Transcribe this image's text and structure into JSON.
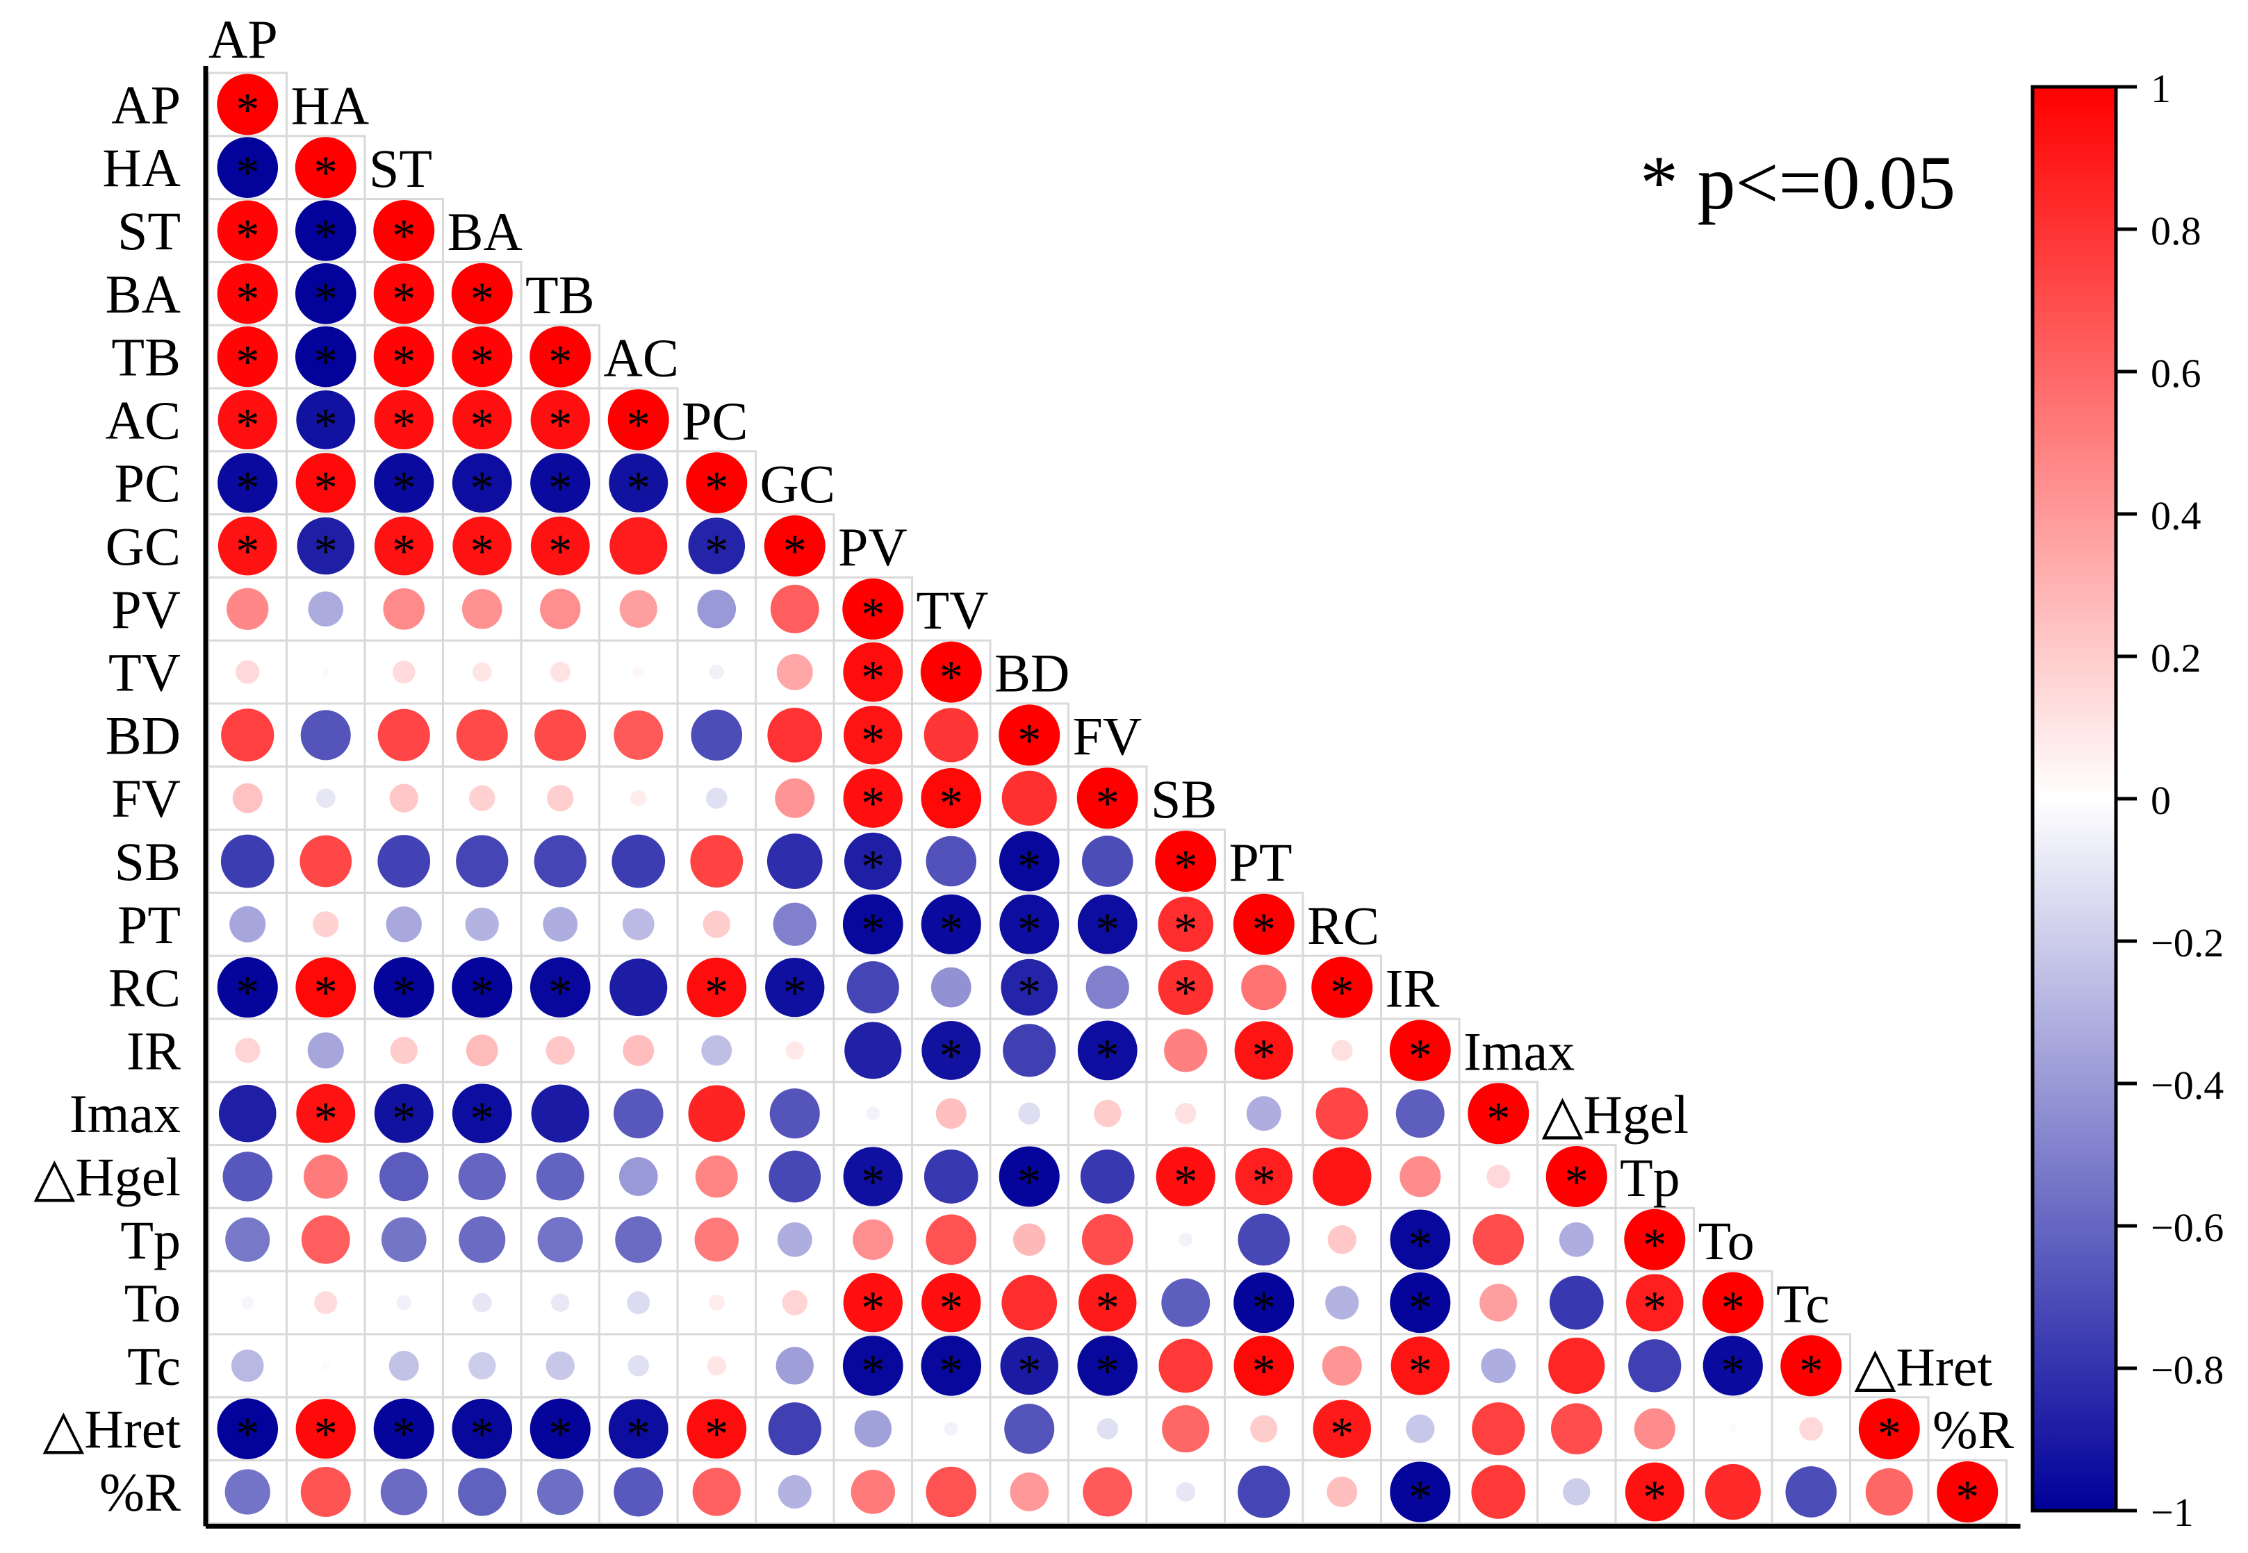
{
  "chart_data": {
    "type": "heatmap",
    "subtype": "lower-triangle correlation matrix, circles sized and coloured by r",
    "variables": [
      "AP",
      "HA",
      "ST",
      "BA",
      "TB",
      "AC",
      "PC",
      "GC",
      "PV",
      "TV",
      "BD",
      "FV",
      "SB",
      "PT",
      "RC",
      "IR",
      "Imax",
      "△Hgel",
      "Tp",
      "To",
      "Tc",
      "△Hret",
      "%R"
    ],
    "rows": [
      {
        "var": "AP",
        "r": [
          1
        ],
        "sig": [
          1
        ]
      },
      {
        "var": "HA",
        "r": [
          -0.99,
          1
        ],
        "sig": [
          1,
          1
        ]
      },
      {
        "var": "ST",
        "r": [
          0.98,
          -0.99,
          1
        ],
        "sig": [
          1,
          1,
          1
        ]
      },
      {
        "var": "BA",
        "r": [
          0.98,
          -0.99,
          0.98,
          1
        ],
        "sig": [
          1,
          1,
          1,
          1
        ]
      },
      {
        "var": "TB",
        "r": [
          0.98,
          -0.99,
          0.98,
          0.98,
          1
        ],
        "sig": [
          1,
          1,
          1,
          1,
          1
        ]
      },
      {
        "var": "AC",
        "r": [
          0.94,
          -0.93,
          0.94,
          0.94,
          0.94,
          1
        ],
        "sig": [
          1,
          1,
          1,
          1,
          1,
          1
        ]
      },
      {
        "var": "PC",
        "r": [
          -0.96,
          0.96,
          -0.96,
          -0.95,
          -0.96,
          -0.93,
          1
        ],
        "sig": [
          1,
          1,
          1,
          1,
          1,
          1,
          1
        ]
      },
      {
        "var": "GC",
        "r": [
          0.93,
          -0.88,
          0.93,
          0.93,
          0.93,
          0.89,
          -0.86,
          1
        ],
        "sig": [
          1,
          1,
          1,
          1,
          1,
          0,
          1,
          1
        ]
      },
      {
        "var": "PV",
        "r": [
          0.47,
          -0.33,
          0.46,
          0.43,
          0.44,
          0.38,
          -0.4,
          0.63,
          1
        ],
        "sig": [
          0,
          0,
          0,
          0,
          0,
          0,
          0,
          0,
          1
        ]
      },
      {
        "var": "TV",
        "r": [
          0.15,
          -0.02,
          0.14,
          0.1,
          0.11,
          0.03,
          -0.06,
          0.35,
          0.95,
          1
        ],
        "sig": [
          0,
          0,
          0,
          0,
          0,
          0,
          0,
          0,
          1,
          1
        ]
      },
      {
        "var": "BD",
        "r": [
          0.75,
          -0.67,
          0.73,
          0.71,
          0.71,
          0.65,
          -0.7,
          0.8,
          0.92,
          0.79,
          1
        ],
        "sig": [
          0,
          0,
          0,
          0,
          0,
          0,
          0,
          0,
          1,
          0,
          1
        ]
      },
      {
        "var": "FV",
        "r": [
          0.24,
          -0.1,
          0.22,
          0.18,
          0.19,
          0.07,
          -0.12,
          0.42,
          0.94,
          0.97,
          0.81,
          1
        ],
        "sig": [
          0,
          0,
          0,
          0,
          0,
          0,
          0,
          0,
          1,
          1,
          0,
          1
        ]
      },
      {
        "var": "SB",
        "r": [
          -0.76,
          0.72,
          -0.74,
          -0.73,
          -0.73,
          -0.76,
          0.74,
          -0.82,
          -0.88,
          -0.68,
          -0.97,
          -0.7,
          1
        ],
        "sig": [
          0,
          0,
          0,
          0,
          0,
          0,
          0,
          0,
          1,
          0,
          1,
          0,
          1
        ]
      },
      {
        "var": "PT",
        "r": [
          -0.35,
          0.18,
          -0.34,
          -0.3,
          -0.32,
          -0.27,
          0.2,
          -0.5,
          -0.97,
          -0.96,
          -0.95,
          -0.95,
          0.82,
          1
        ],
        "sig": [
          0,
          0,
          0,
          0,
          0,
          0,
          0,
          0,
          1,
          1,
          1,
          1,
          1,
          1
        ]
      },
      {
        "var": "RC",
        "r": [
          -0.98,
          0.97,
          -0.98,
          -0.98,
          -0.97,
          -0.89,
          0.95,
          -0.94,
          -0.73,
          -0.43,
          -0.86,
          -0.5,
          0.81,
          0.55,
          1
        ],
        "sig": [
          1,
          1,
          1,
          1,
          1,
          0,
          1,
          1,
          0,
          0,
          1,
          0,
          1,
          0,
          1
        ]
      },
      {
        "var": "IR",
        "r": [
          0.17,
          -0.35,
          0.2,
          0.27,
          0.22,
          0.26,
          -0.25,
          0.09,
          -0.87,
          -0.93,
          -0.75,
          -0.95,
          0.5,
          0.92,
          0.12,
          1
        ],
        "sig": [
          0,
          0,
          0,
          0,
          0,
          0,
          0,
          0,
          0,
          1,
          0,
          1,
          0,
          1,
          0,
          1
        ]
      },
      {
        "var": "Imax",
        "r": [
          -0.88,
          0.93,
          -0.93,
          -0.95,
          -0.9,
          -0.66,
          0.86,
          -0.67,
          -0.05,
          0.25,
          -0.13,
          0.2,
          0.12,
          -0.32,
          0.73,
          -0.63,
          1
        ],
        "sig": [
          0,
          1,
          1,
          1,
          0,
          0,
          0,
          0,
          0,
          0,
          0,
          0,
          0,
          0,
          0,
          0,
          1
        ]
      },
      {
        "var": "△Hgel",
        "r": [
          -0.66,
          0.52,
          -0.64,
          -0.6,
          -0.61,
          -0.4,
          0.48,
          -0.72,
          -0.94,
          -0.78,
          -0.98,
          -0.78,
          0.94,
          0.88,
          0.92,
          0.45,
          0.15,
          1
        ],
        "sig": [
          0,
          0,
          0,
          0,
          0,
          0,
          0,
          0,
          1,
          0,
          1,
          0,
          1,
          1,
          0,
          0,
          0,
          1
        ]
      },
      {
        "var": "Tp",
        "r": [
          -0.53,
          0.63,
          -0.54,
          -0.58,
          -0.55,
          -0.58,
          0.52,
          -0.32,
          0.44,
          0.68,
          0.28,
          0.7,
          -0.05,
          -0.72,
          0.22,
          -0.97,
          0.7,
          -0.32,
          1
        ],
        "sig": [
          0,
          0,
          0,
          0,
          0,
          0,
          0,
          0,
          0,
          0,
          0,
          0,
          0,
          0,
          0,
          1,
          0,
          0,
          1
        ]
      },
      {
        "var": "To",
        "r": [
          -0.04,
          0.14,
          -0.06,
          -0.1,
          -0.09,
          -0.14,
          0.07,
          0.17,
          0.94,
          0.94,
          0.82,
          0.9,
          -0.63,
          -0.98,
          -0.3,
          -0.98,
          0.38,
          -0.78,
          0.88,
          1
        ],
        "sig": [
          0,
          0,
          0,
          0,
          0,
          0,
          0,
          0,
          1,
          1,
          0,
          1,
          0,
          1,
          0,
          1,
          0,
          0,
          1,
          1
        ]
      },
      {
        "var": "Tc",
        "r": [
          -0.28,
          0.02,
          -0.24,
          -0.2,
          -0.22,
          -0.12,
          0.1,
          -0.38,
          -0.97,
          -0.97,
          -0.9,
          -0.97,
          0.78,
          0.97,
          0.42,
          0.92,
          -0.32,
          0.85,
          -0.75,
          -0.96,
          1
        ],
        "sig": [
          0,
          0,
          0,
          0,
          0,
          0,
          0,
          0,
          1,
          1,
          1,
          1,
          0,
          1,
          0,
          1,
          0,
          0,
          0,
          1,
          1
        ]
      },
      {
        "var": "△Hret",
        "r": [
          -0.99,
          0.96,
          -0.98,
          -0.97,
          -0.98,
          -0.95,
          0.95,
          -0.75,
          -0.37,
          -0.05,
          -0.67,
          -0.12,
          0.6,
          0.2,
          0.9,
          -0.22,
          0.75,
          0.7,
          0.45,
          0.02,
          0.15,
          1
        ],
        "sig": [
          1,
          1,
          1,
          1,
          1,
          1,
          1,
          0,
          0,
          0,
          0,
          0,
          0,
          0,
          1,
          0,
          0,
          0,
          0,
          0,
          0,
          1
        ]
      },
      {
        "var": "%R",
        "r": [
          -0.55,
          0.67,
          -0.58,
          -0.62,
          -0.57,
          -0.65,
          0.62,
          -0.3,
          0.52,
          0.68,
          0.4,
          0.65,
          -0.1,
          -0.73,
          0.25,
          -0.98,
          0.78,
          -0.2,
          0.93,
          0.83,
          -0.7,
          0.6,
          1
        ],
        "sig": [
          0,
          0,
          0,
          0,
          0,
          0,
          0,
          0,
          0,
          0,
          0,
          0,
          0,
          0,
          0,
          1,
          0,
          0,
          1,
          0,
          0,
          0,
          1
        ]
      }
    ],
    "colorbar": {
      "min": -1,
      "max": 1,
      "ticks": [
        "1",
        "0.8",
        "0.6",
        "0.4",
        "0.2",
        "0",
        "−0.2",
        "−0.4",
        "−0.6",
        "−0.8",
        "−1"
      ],
      "neg_color": "#00009a",
      "mid_color": "#ffffff",
      "pos_color": "#ff0000"
    },
    "annotation": "* p<=0.05",
    "sig_marker": "*"
  }
}
